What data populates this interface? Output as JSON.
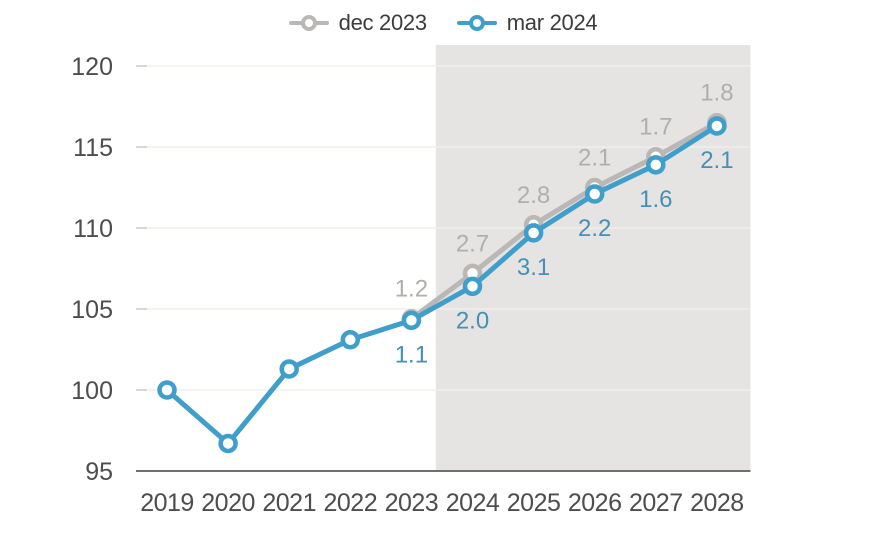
{
  "chart_data": {
    "type": "line",
    "title": "",
    "xlabel": "",
    "ylabel": "",
    "x_ticks": [
      2019,
      2020,
      2021,
      2022,
      2023,
      2024,
      2025,
      2026,
      2027,
      2028
    ],
    "yticks": [
      95,
      100,
      105,
      110,
      115,
      120
    ],
    "ylim": [
      95,
      121.3
    ],
    "grid": true,
    "legend_position": "top-center",
    "forecast_region": {
      "from": 2023.4,
      "to": 2028.55
    },
    "colors": {
      "forecast_bg": "#e5e4e3",
      "grid": "#f1efec",
      "tick": "#d2d0cd",
      "axis": "#707070",
      "axis_label": "#4d4d4d"
    },
    "series": [
      {
        "name": "dec 2023",
        "color": "#bab7b4",
        "label_color": "#b1aeab",
        "label_position": "above",
        "x": [
          2023,
          2024,
          2025,
          2026,
          2027,
          2028
        ],
        "values": [
          104.4,
          107.2,
          110.2,
          112.5,
          114.4,
          116.5
        ],
        "growth_labels": [
          "1.2",
          "2.7",
          "2.8",
          "2.1",
          "1.7",
          "1.8"
        ]
      },
      {
        "name": "mar 2024",
        "color": "#3f9fca",
        "label_color": "#4690b5",
        "label_position": "below",
        "x": [
          2019,
          2020,
          2021,
          2022,
          2023,
          2024,
          2025,
          2026,
          2027,
          2028
        ],
        "values": [
          100.0,
          96.7,
          101.3,
          103.1,
          104.3,
          106.4,
          109.7,
          112.1,
          113.9,
          116.3
        ],
        "growth_labels": [
          "",
          "",
          "",
          "",
          "1.1",
          "2.0",
          "3.1",
          "2.2",
          "1.6",
          "2.1"
        ]
      }
    ]
  }
}
